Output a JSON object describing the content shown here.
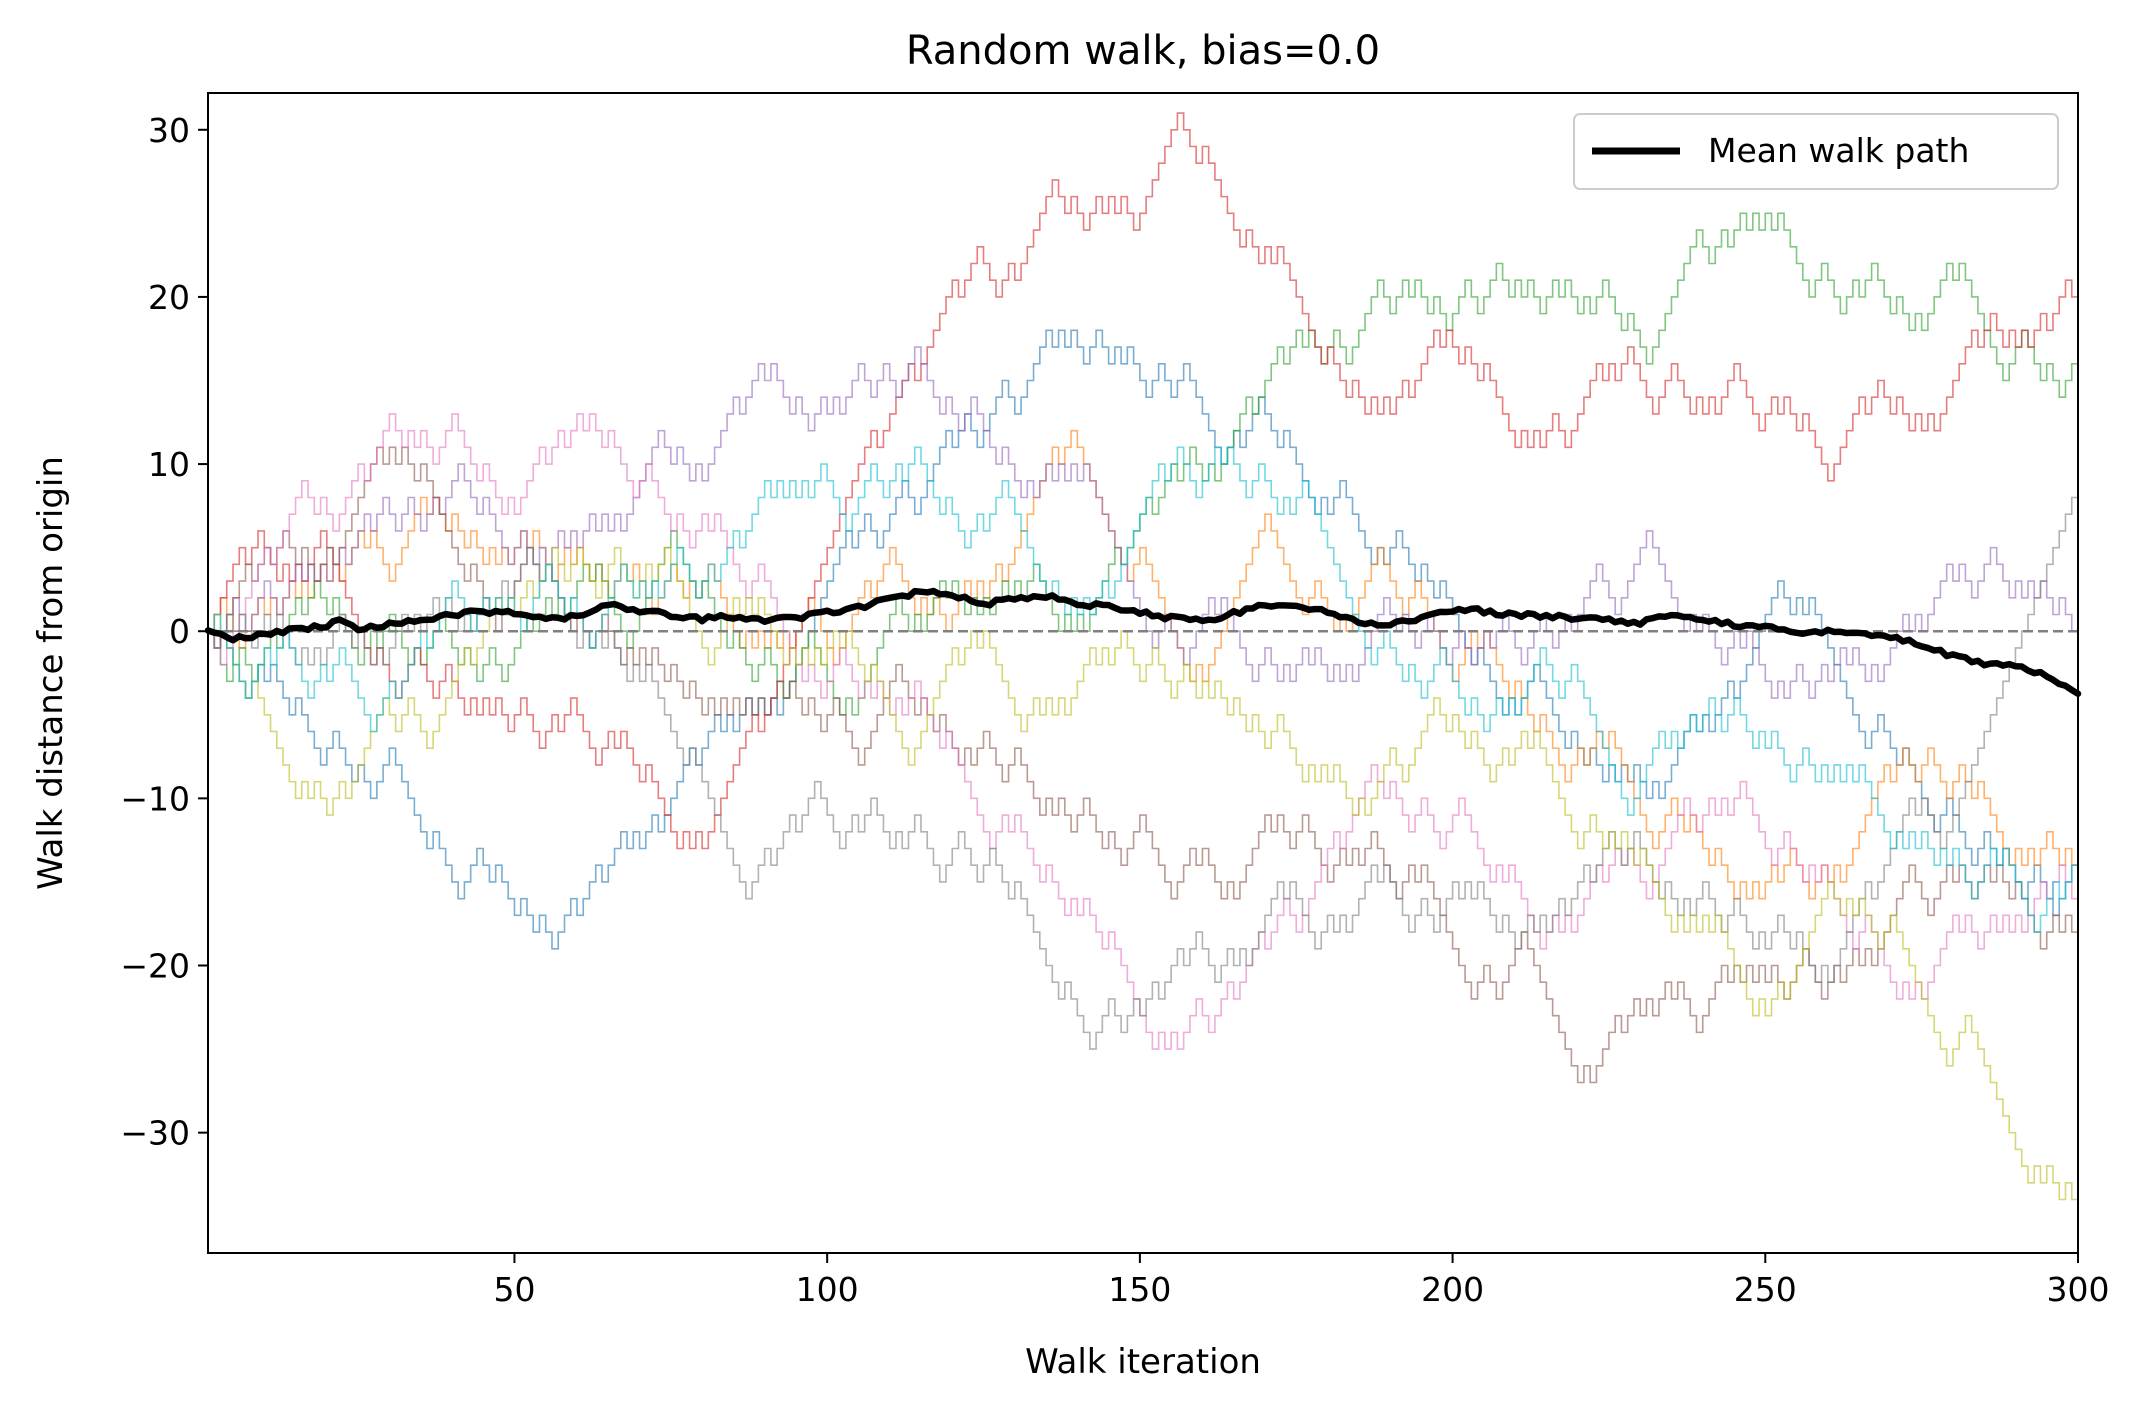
{
  "chart_data": {
    "type": "line",
    "title": "Random walk, bias=0.0",
    "xlabel": "Walk iteration",
    "ylabel": "Walk distance from origin",
    "xlim": [
      1,
      300
    ],
    "ylim": [
      -37.2,
      32.2
    ],
    "x_ticks": [
      50,
      100,
      150,
      200,
      250,
      300
    ],
    "x_tick_labels": [
      "50",
      "100",
      "150",
      "200",
      "250",
      "300"
    ],
    "y_ticks": [
      -30,
      -20,
      -10,
      0,
      10,
      20,
      30
    ],
    "y_tick_labels": [
      "−30",
      "−20",
      "−10",
      "0",
      "10",
      "20",
      "30"
    ],
    "grid": false,
    "legend": {
      "location": "upper right",
      "entries": [
        "Mean walk path"
      ]
    },
    "reference_line": {
      "y": 0,
      "style": "dashed",
      "color": "#808080"
    },
    "individual_walks": {
      "count": 10,
      "step": "post",
      "colors": [
        "#1f77b4",
        "#ff7f0e",
        "#2ca02c",
        "#d62728",
        "#9467bd",
        "#8c564b",
        "#e377c2",
        "#7f7f7f",
        "#bcbd22",
        "#17becf"
      ],
      "anchors": [
        [
          [
            1,
            0
          ],
          [
            30,
            -7
          ],
          [
            50,
            -16
          ],
          [
            60,
            -17
          ],
          [
            70,
            -12
          ],
          [
            80,
            -8
          ],
          [
            100,
            3
          ],
          [
            115,
            8
          ],
          [
            130,
            13
          ],
          [
            145,
            17
          ],
          [
            160,
            14
          ],
          [
            180,
            8
          ],
          [
            200,
            2
          ],
          [
            215,
            -4
          ],
          [
            230,
            -8
          ],
          [
            245,
            -4
          ],
          [
            260,
            0
          ],
          [
            275,
            -10
          ],
          [
            290,
            -14
          ],
          [
            300,
            -15
          ]
        ],
        [
          [
            1,
            0
          ],
          [
            20,
            3
          ],
          [
            40,
            8
          ],
          [
            60,
            5
          ],
          [
            80,
            2
          ],
          [
            100,
            0
          ],
          [
            110,
            6
          ],
          [
            125,
            2
          ],
          [
            140,
            12
          ],
          [
            150,
            4
          ],
          [
            160,
            -2
          ],
          [
            170,
            7
          ],
          [
            185,
            2
          ],
          [
            200,
            -4
          ],
          [
            220,
            -7
          ],
          [
            240,
            -12
          ],
          [
            255,
            -14
          ],
          [
            270,
            -10
          ],
          [
            285,
            -9
          ],
          [
            300,
            -14
          ]
        ],
        [
          [
            1,
            0
          ],
          [
            20,
            2
          ],
          [
            40,
            0
          ],
          [
            60,
            3
          ],
          [
            80,
            2
          ],
          [
            100,
            -2
          ],
          [
            120,
            3
          ],
          [
            140,
            2
          ],
          [
            160,
            10
          ],
          [
            180,
            16
          ],
          [
            200,
            18
          ],
          [
            220,
            20
          ],
          [
            235,
            21
          ],
          [
            245,
            24
          ],
          [
            260,
            22
          ],
          [
            270,
            20
          ],
          [
            285,
            18
          ],
          [
            300,
            15
          ]
        ],
        [
          [
            1,
            0
          ],
          [
            20,
            5
          ],
          [
            40,
            -2
          ],
          [
            60,
            -6
          ],
          [
            80,
            -12
          ],
          [
            90,
            -5
          ],
          [
            105,
            12
          ],
          [
            120,
            21
          ],
          [
            130,
            22
          ],
          [
            135,
            26
          ],
          [
            148,
            25
          ],
          [
            160,
            29
          ],
          [
            175,
            20
          ],
          [
            190,
            14
          ],
          [
            200,
            17
          ],
          [
            215,
            12
          ],
          [
            225,
            16
          ],
          [
            240,
            13
          ],
          [
            260,
            9
          ],
          [
            275,
            13
          ],
          [
            290,
            18
          ],
          [
            300,
            20
          ]
        ],
        [
          [
            1,
            0
          ],
          [
            20,
            4
          ],
          [
            40,
            8
          ],
          [
            60,
            5
          ],
          [
            80,
            10
          ],
          [
            100,
            14
          ],
          [
            110,
            15
          ],
          [
            125,
            12
          ],
          [
            140,
            9
          ],
          [
            160,
            1
          ],
          [
            175,
            -3
          ],
          [
            190,
            1
          ],
          [
            200,
            -2
          ],
          [
            220,
            0
          ],
          [
            240,
            2
          ],
          [
            260,
            -2
          ],
          [
            275,
            0
          ],
          [
            290,
            2
          ],
          [
            300,
            0
          ]
        ],
        [
          [
            1,
            0
          ],
          [
            20,
            5
          ],
          [
            35,
            10
          ],
          [
            55,
            3
          ],
          [
            70,
            -2
          ],
          [
            90,
            -4
          ],
          [
            110,
            -3
          ],
          [
            125,
            -7
          ],
          [
            140,
            -11
          ],
          [
            160,
            -14
          ],
          [
            175,
            -12
          ],
          [
            190,
            -15
          ],
          [
            200,
            -18
          ],
          [
            215,
            -22
          ],
          [
            220,
            -27
          ],
          [
            235,
            -22
          ],
          [
            250,
            -20
          ],
          [
            270,
            -18
          ],
          [
            285,
            -14
          ],
          [
            300,
            -17
          ]
        ],
        [
          [
            1,
            0
          ],
          [
            20,
            8
          ],
          [
            35,
            13
          ],
          [
            50,
            8
          ],
          [
            65,
            13
          ],
          [
            80,
            6
          ],
          [
            100,
            -4
          ],
          [
            120,
            -7
          ],
          [
            130,
            -12
          ],
          [
            145,
            -18
          ],
          [
            160,
            -24
          ],
          [
            175,
            -18
          ],
          [
            190,
            -10
          ],
          [
            205,
            -14
          ],
          [
            220,
            -18
          ],
          [
            230,
            -14
          ],
          [
            245,
            -11
          ],
          [
            260,
            -15
          ],
          [
            270,
            -20
          ],
          [
            285,
            -18
          ],
          [
            300,
            -16
          ]
        ],
        [
          [
            1,
            0
          ],
          [
            20,
            -2
          ],
          [
            40,
            1
          ],
          [
            55,
            4
          ],
          [
            70,
            -2
          ],
          [
            80,
            -9
          ],
          [
            87,
            -19
          ],
          [
            100,
            -10
          ],
          [
            115,
            -12
          ],
          [
            130,
            -15
          ],
          [
            140,
            -24
          ],
          [
            150,
            -22
          ],
          [
            165,
            -20
          ],
          [
            180,
            -17
          ],
          [
            200,
            -16
          ],
          [
            215,
            -18
          ],
          [
            230,
            -12
          ],
          [
            245,
            -15
          ],
          [
            260,
            -21
          ],
          [
            280,
            -12
          ],
          [
            295,
            12
          ],
          [
            300,
            12
          ]
        ],
        [
          [
            1,
            0
          ],
          [
            20,
            -10
          ],
          [
            40,
            -3
          ],
          [
            60,
            4
          ],
          [
            80,
            -2
          ],
          [
            100,
            -1
          ],
          [
            120,
            -2
          ],
          [
            140,
            -4
          ],
          [
            160,
            -3
          ],
          [
            180,
            -8
          ],
          [
            200,
            -6
          ],
          [
            220,
            -13
          ],
          [
            240,
            -18
          ],
          [
            250,
            -22
          ],
          [
            260,
            -14
          ],
          [
            270,
            -16
          ],
          [
            285,
            -25
          ],
          [
            295,
            -32
          ],
          [
            300,
            -34
          ]
        ],
        [
          [
            1,
            0
          ],
          [
            20,
            -3
          ],
          [
            40,
            3
          ],
          [
            60,
            1
          ],
          [
            80,
            4
          ],
          [
            100,
            8
          ],
          [
            110,
            9
          ],
          [
            115,
            10
          ],
          [
            130,
            7
          ],
          [
            145,
            2
          ],
          [
            165,
            11
          ],
          [
            175,
            8
          ],
          [
            190,
            -1
          ],
          [
            200,
            -2
          ],
          [
            220,
            -3
          ],
          [
            230,
            -9
          ],
          [
            245,
            -4
          ],
          [
            260,
            -8
          ],
          [
            275,
            -13
          ],
          [
            290,
            -15
          ],
          [
            300,
            -14
          ]
        ]
      ]
    },
    "series": [
      {
        "name": "Mean walk path",
        "color": "#000000",
        "x": [
          1,
          5,
          10,
          15,
          20,
          22,
          25,
          30,
          35,
          40,
          45,
          50,
          55,
          60,
          65,
          70,
          75,
          80,
          85,
          90,
          95,
          100,
          105,
          110,
          115,
          120,
          125,
          130,
          135,
          140,
          145,
          150,
          155,
          160,
          165,
          170,
          175,
          180,
          185,
          190,
          195,
          200,
          205,
          210,
          215,
          220,
          225,
          230,
          235,
          240,
          245,
          250,
          255,
          260,
          265,
          270,
          275,
          280,
          285,
          290,
          295,
          300
        ],
        "y": [
          0,
          -0.5,
          -0.2,
          0.1,
          0.3,
          0.8,
          0.2,
          0.4,
          0.6,
          1.0,
          1.2,
          1.1,
          0.7,
          0.9,
          1.6,
          1.2,
          1.0,
          0.7,
          0.9,
          0.6,
          0.8,
          1.1,
          1.4,
          1.9,
          2.4,
          2.2,
          1.6,
          2.0,
          2.1,
          1.6,
          1.5,
          1.1,
          0.8,
          0.6,
          1.1,
          1.5,
          1.6,
          1.1,
          0.6,
          0.4,
          0.8,
          1.3,
          1.2,
          1.0,
          0.9,
          0.8,
          0.7,
          0.5,
          1.1,
          0.6,
          0.4,
          0.2,
          -0.1,
          0.0,
          -0.2,
          -0.3,
          -0.8,
          -1.5,
          -1.9,
          -2.1,
          -2.6,
          -3.8
        ]
      }
    ]
  }
}
